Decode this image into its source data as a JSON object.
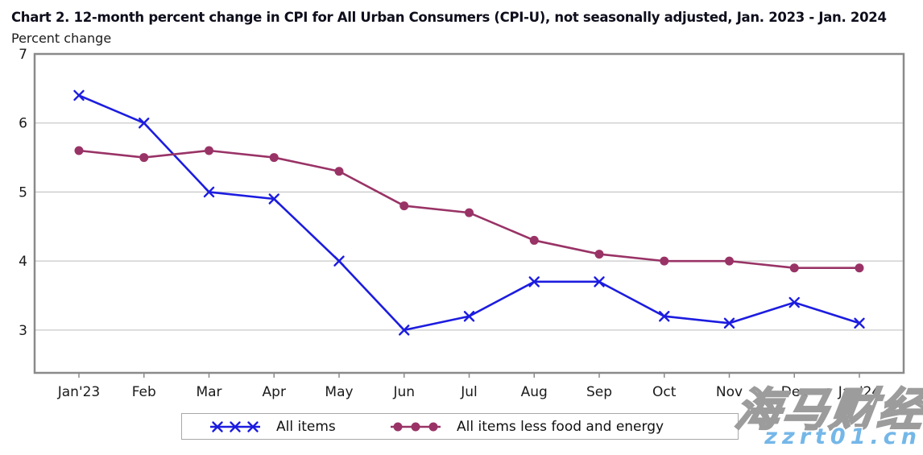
{
  "title": "Chart 2. 12-month percent change in CPI for All Urban Consumers (CPI-U), not seasonally adjusted, Jan. 2023 - Jan. 2024",
  "axis_caption": "Percent change",
  "chart_data": {
    "type": "line",
    "categories": [
      "Jan'23",
      "Feb",
      "Mar",
      "Apr",
      "May",
      "Jun",
      "Jul",
      "Aug",
      "Sep",
      "Oct",
      "Nov",
      "Dec",
      "Jan'24"
    ],
    "series": [
      {
        "name": "All items",
        "marker": "x",
        "color": "#1c1ce0",
        "values": [
          6.4,
          6.0,
          5.0,
          4.9,
          4.0,
          3.0,
          3.2,
          3.7,
          3.7,
          3.2,
          3.1,
          3.4,
          3.1
        ]
      },
      {
        "name": "All items less food and energy",
        "marker": "circle",
        "color": "#993366",
        "values": [
          5.6,
          5.5,
          5.6,
          5.5,
          5.3,
          4.8,
          4.7,
          4.3,
          4.1,
          4.0,
          4.0,
          3.9,
          3.9
        ]
      }
    ],
    "title": "Chart 2. 12-month percent change in CPI for All Urban Consumers (CPI-U), not seasonally adjusted, Jan. 2023 - Jan. 2024",
    "ylabel": "Percent change",
    "xlabel": "",
    "yticks": [
      3,
      4,
      5,
      6,
      7
    ],
    "ylim": [
      2.38,
      7
    ],
    "grid": "horizontal",
    "grid_color": "#c9c9c9",
    "frame_color": "#8a8a8a",
    "legend_position": "bottom"
  },
  "watermark": {
    "line1": "海马财经",
    "line2": "zzrt01.cn",
    "url_color": "#74b7e8"
  }
}
